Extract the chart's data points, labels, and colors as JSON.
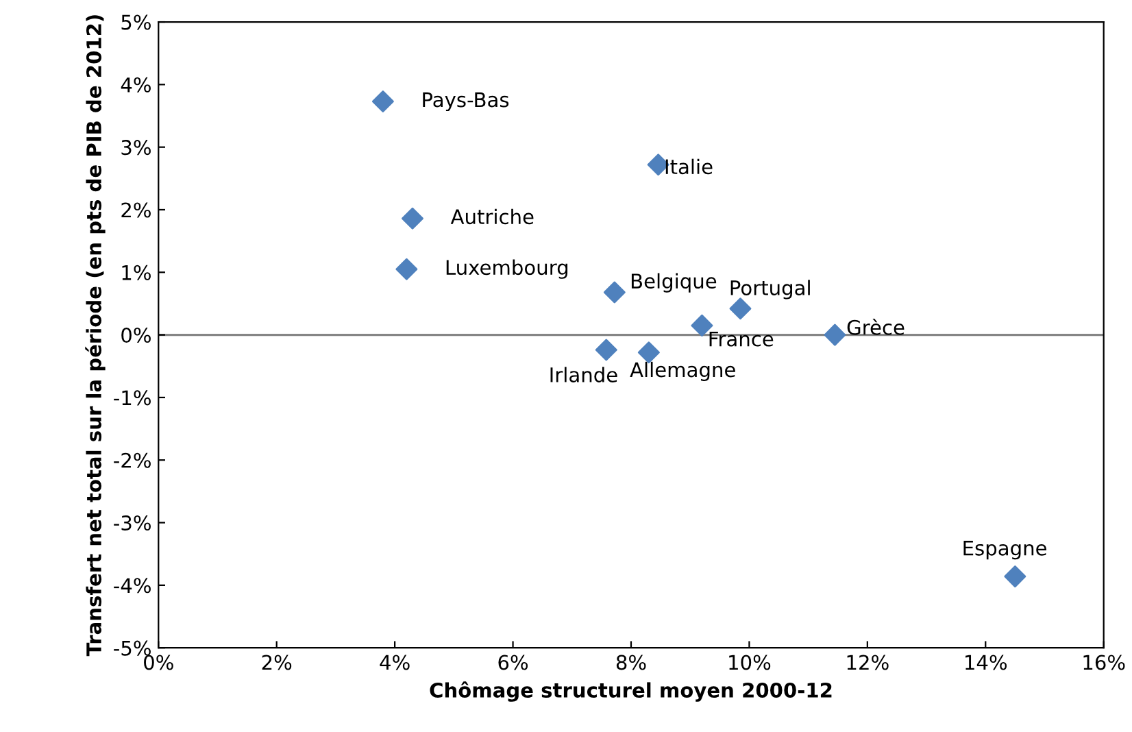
{
  "chart_data": {
    "type": "scatter",
    "xlabel": "Chômage structurel moyen 2000-12",
    "ylabel": "Transfert net total sur la période (en pts de PIB de 2012)",
    "series": [
      {
        "color": "#4f81bd",
        "x": [
          3.8,
          8.46,
          4.3,
          4.2,
          7.72,
          9.85,
          9.2,
          11.45,
          7.58,
          8.3,
          14.5
        ],
        "values": [
          3.73,
          2.72,
          1.86,
          1.05,
          0.68,
          0.42,
          0.15,
          0.0,
          -0.24,
          -0.28,
          -3.86
        ]
      }
    ],
    "marker": "diamond",
    "annotations": [
      {
        "text": "Pays-Bas",
        "x": 3.8,
        "y": 3.73
      },
      {
        "text": "Italie",
        "x": 8.46,
        "y": 2.72
      },
      {
        "text": "Autriche",
        "x": 4.3,
        "y": 1.86
      },
      {
        "text": "Luxembourg",
        "x": 4.2,
        "y": 1.05
      },
      {
        "text": "Belgique",
        "x": 7.72,
        "y": 0.68
      },
      {
        "text": "Portugal",
        "x": 9.85,
        "y": 0.42
      },
      {
        "text": "France",
        "x": 9.2,
        "y": 0.15
      },
      {
        "text": "Grèce",
        "x": 11.45,
        "y": 0.0
      },
      {
        "text": "Irlande",
        "x": 7.58,
        "y": -0.24
      },
      {
        "text": "Allemagne",
        "x": 8.3,
        "y": -0.28
      },
      {
        "text": "Espagne",
        "x": 14.5,
        "y": -3.86
      }
    ],
    "ref_lines": [
      {
        "axis": "y",
        "value": 0,
        "color": "#868686"
      }
    ],
    "xlim": [
      0,
      16
    ],
    "xticks": [
      {
        "value": 0,
        "label": "0%"
      },
      {
        "value": 2,
        "label": "2%"
      },
      {
        "value": 4,
        "label": "4%"
      },
      {
        "value": 6,
        "label": "6%"
      },
      {
        "value": 8,
        "label": "8%"
      },
      {
        "value": 10,
        "label": "10%"
      },
      {
        "value": 12,
        "label": "12%"
      },
      {
        "value": 14,
        "label": "14%"
      },
      {
        "value": 16,
        "label": "16%"
      }
    ],
    "ylim": [
      -5,
      5
    ],
    "yticks": [
      {
        "value": -5,
        "label": "-5%"
      },
      {
        "value": -4,
        "label": "-4%"
      },
      {
        "value": -3,
        "label": "-3%"
      },
      {
        "value": -2,
        "label": "-2%"
      },
      {
        "value": -1,
        "label": "-1%"
      },
      {
        "value": 0,
        "label": "0%"
      },
      {
        "value": 1,
        "label": "1%"
      },
      {
        "value": 2,
        "label": "2%"
      },
      {
        "value": 3,
        "label": "3%"
      },
      {
        "value": 4,
        "label": "4%"
      },
      {
        "value": 5,
        "label": "5%"
      }
    ],
    "tick_labels": "xy"
  }
}
